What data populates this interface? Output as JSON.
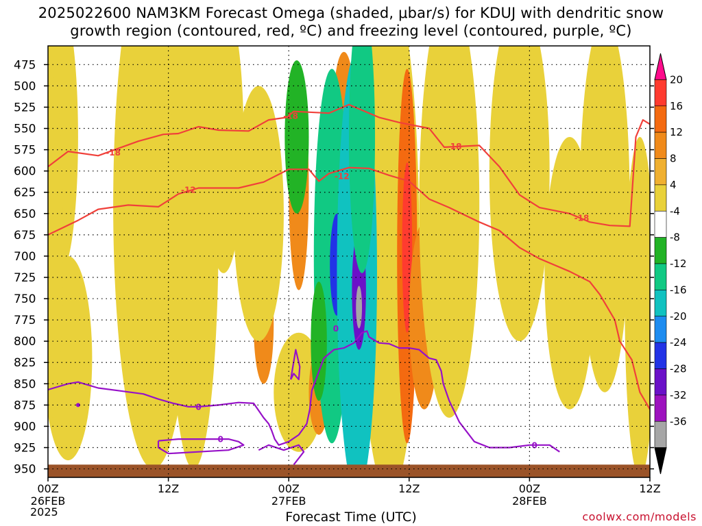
{
  "title": {
    "line1": "2025022600 NAM3KM Forecast Omega (shaded, μbar/s) for KDUJ with dendritic snow",
    "line2": "growth region (contoured, red, ºC) and freezing level (contoured, purple, ºC)"
  },
  "credit": "coolwx.com/models",
  "x_title": "Forecast Time (UTC)",
  "year_label": "2025",
  "chart_data": {
    "type": "heatmap",
    "title": "2025022600 NAM3KM Forecast Omega (shaded, μbar/s) for KDUJ",
    "xlabel": "Forecast Time (UTC)",
    "ylabel": "",
    "x_hours": [
      0,
      48
    ],
    "x_ticks": [
      {
        "hour": 0,
        "label": "00Z",
        "sub": "26FEB"
      },
      {
        "hour": 12,
        "label": "12Z",
        "sub": ""
      },
      {
        "hour": 24,
        "label": "00Z",
        "sub": "27FEB"
      },
      {
        "hour": 36,
        "label": "12Z",
        "sub": ""
      },
      {
        "hour": 48,
        "label": "00Z",
        "sub": "28FEB"
      },
      {
        "hour": 60,
        "label": "12Z",
        "sub": ""
      }
    ],
    "y_levels": [
      475,
      500,
      525,
      550,
      575,
      600,
      625,
      650,
      675,
      700,
      725,
      750,
      775,
      800,
      825,
      850,
      875,
      900,
      925,
      950
    ],
    "ylim": [
      453,
      960
    ],
    "grid": true,
    "colorbar": {
      "labels": [
        "20",
        "16",
        "12",
        "8",
        "4",
        "-4",
        "-8",
        "-12",
        "-16",
        "-20",
        "-24",
        "-28",
        "-32",
        "-36"
      ],
      "colors": [
        "#ff0b8c",
        "#ff3b2f",
        "#f46a10",
        "#f08a1a",
        "#f0b030",
        "#e9d13a",
        "#ffffff",
        "#22b326",
        "#11c983",
        "#10c2c0",
        "#1d8cf0",
        "#2233e6",
        "#6b11c8",
        "#9d12be",
        "#a6a6a6",
        "#000000"
      ]
    },
    "omega_blobs": [
      {
        "hour": 1.2,
        "level": 560,
        "dh": 1.8,
        "dl": 160,
        "value": 6
      },
      {
        "hour": 2.0,
        "level": 820,
        "dh": 2.4,
        "dl": 120,
        "value": 6
      },
      {
        "hour": 0.5,
        "level": 690,
        "dh": 1.0,
        "dl": 200,
        "value": 5
      },
      {
        "hour": 10.5,
        "level": 640,
        "dh": 4.0,
        "dl": 310,
        "value": 5
      },
      {
        "hour": 14.5,
        "level": 670,
        "dh": 2.5,
        "dl": 280,
        "value": 5
      },
      {
        "hour": 17.5,
        "level": 560,
        "dh": 2.0,
        "dl": 160,
        "value": 5
      },
      {
        "hour": 21.5,
        "level": 780,
        "dh": 1.0,
        "dl": 70,
        "value": 10
      },
      {
        "hour": 21.0,
        "level": 650,
        "dh": 2.5,
        "dl": 150,
        "value": 5
      },
      {
        "hour": 25.0,
        "level": 620,
        "dh": 1.0,
        "dl": 120,
        "value": 8
      },
      {
        "hour": 25.0,
        "level": 860,
        "dh": 2.5,
        "dl": 70,
        "value": 6
      },
      {
        "hour": 27.0,
        "level": 860,
        "dh": 1.0,
        "dl": 50,
        "value": 10
      },
      {
        "hour": 29.5,
        "level": 520,
        "dh": 1.0,
        "dl": 60,
        "value": 8
      },
      {
        "hour": 34.0,
        "level": 680,
        "dh": 3.0,
        "dl": 300,
        "value": 6
      },
      {
        "hour": 35.8,
        "level": 700,
        "dh": 1.0,
        "dl": 220,
        "value": 12
      },
      {
        "hour": 35.8,
        "level": 690,
        "dh": 0.5,
        "dl": 100,
        "value": 18
      },
      {
        "hour": 37.5,
        "level": 770,
        "dh": 1.5,
        "dl": 110,
        "value": 10
      },
      {
        "hour": 40.0,
        "level": 640,
        "dh": 3.0,
        "dl": 250,
        "value": 6
      },
      {
        "hour": 47.0,
        "level": 600,
        "dh": 3.0,
        "dl": 200,
        "value": 5
      },
      {
        "hour": 52.0,
        "level": 720,
        "dh": 2.5,
        "dl": 160,
        "value": 6
      },
      {
        "hour": 55.5,
        "level": 640,
        "dh": 2.5,
        "dl": 220,
        "value": 5
      },
      {
        "hour": 59.0,
        "level": 760,
        "dh": 1.5,
        "dl": 200,
        "value": 5
      }
    ],
    "omega_neg": [
      {
        "hour": 24.8,
        "level": 560,
        "dh": 1.2,
        "dl": 90,
        "value": -6
      },
      {
        "hour": 28.3,
        "level": 700,
        "dh": 1.8,
        "dl": 220,
        "value": -10
      },
      {
        "hour": 28.8,
        "level": 710,
        "dh": 0.7,
        "dl": 60,
        "value": -20
      },
      {
        "hour": 30.8,
        "level": 720,
        "dh": 2.0,
        "dl": 260,
        "value": -14
      },
      {
        "hour": 31.0,
        "level": 740,
        "dh": 0.7,
        "dl": 70,
        "value": -26
      },
      {
        "hour": 31.0,
        "level": 760,
        "dh": 0.3,
        "dl": 25,
        "value": -33
      },
      {
        "hour": 31.3,
        "level": 560,
        "dh": 1.3,
        "dl": 160,
        "value": -9
      },
      {
        "hour": 27.0,
        "level": 800,
        "dh": 0.8,
        "dl": 70,
        "value": -6
      }
    ],
    "dgz_contours": [
      {
        "label": "-18",
        "points": [
          [
            0,
            595
          ],
          [
            2,
            577
          ],
          [
            5,
            582
          ],
          [
            9,
            565
          ],
          [
            11.5,
            557
          ],
          [
            13,
            556
          ],
          [
            15,
            548
          ],
          [
            17,
            552
          ],
          [
            20,
            553
          ],
          [
            22,
            540
          ],
          [
            23.8,
            537
          ],
          [
            24.5,
            530
          ],
          [
            28,
            532
          ],
          [
            30,
            522
          ],
          [
            33,
            537
          ],
          [
            35,
            543
          ],
          [
            38,
            550
          ],
          [
            39.5,
            572
          ],
          [
            43,
            570
          ],
          [
            45,
            595
          ],
          [
            47,
            628
          ],
          [
            49,
            643
          ],
          [
            52,
            650
          ],
          [
            54,
            660
          ],
          [
            56,
            664
          ],
          [
            58,
            665
          ],
          [
            58.6,
            560
          ],
          [
            59.3,
            540
          ],
          [
            60,
            545
          ]
        ]
      },
      {
        "label": "-12",
        "points": [
          [
            0,
            675
          ],
          [
            3,
            658
          ],
          [
            5,
            645
          ],
          [
            8,
            640
          ],
          [
            11,
            642
          ],
          [
            13,
            627
          ],
          [
            15,
            620
          ],
          [
            19,
            620
          ],
          [
            21.5,
            613
          ],
          [
            24,
            598
          ],
          [
            26,
            598
          ],
          [
            27,
            612
          ],
          [
            28,
            603
          ],
          [
            30,
            596
          ],
          [
            32,
            597
          ],
          [
            34,
            605
          ],
          [
            36,
            612
          ],
          [
            38,
            633
          ],
          [
            40,
            643
          ],
          [
            43,
            660
          ],
          [
            45,
            670
          ],
          [
            47,
            690
          ],
          [
            49,
            703
          ],
          [
            52,
            718
          ],
          [
            54,
            730
          ],
          [
            55,
            745
          ],
          [
            56.5,
            775
          ],
          [
            57,
            800
          ],
          [
            58.2,
            822
          ],
          [
            59,
            860
          ],
          [
            60,
            880
          ]
        ]
      }
    ],
    "freezing_contours": [
      {
        "label": "0",
        "points": [
          [
            0,
            857
          ],
          [
            2,
            850
          ],
          [
            3,
            848
          ],
          [
            5,
            855
          ],
          [
            7,
            858
          ],
          [
            9.5,
            862
          ],
          [
            11,
            868
          ],
          [
            12.5,
            873
          ],
          [
            14,
            877
          ],
          [
            15,
            877
          ],
          [
            17,
            875
          ],
          [
            19,
            872
          ],
          [
            20.5,
            873
          ],
          [
            21.5,
            890
          ],
          [
            22,
            897
          ],
          [
            22.3,
            905
          ],
          [
            22.6,
            915
          ],
          [
            23,
            922
          ],
          [
            24,
            918
          ],
          [
            25,
            910
          ],
          [
            25.8,
            897
          ],
          [
            26.1,
            880
          ],
          [
            26.3,
            858
          ],
          [
            26.8,
            842
          ],
          [
            27.5,
            820
          ],
          [
            28.5,
            810
          ],
          [
            29.5,
            808
          ],
          [
            30.5,
            802
          ],
          [
            31.3,
            790
          ],
          [
            31.8,
            788
          ],
          [
            32,
            795
          ],
          [
            33,
            802
          ],
          [
            34,
            803
          ],
          [
            35,
            808
          ],
          [
            36,
            808
          ],
          [
            37,
            810
          ],
          [
            38,
            820
          ],
          [
            38.7,
            822
          ],
          [
            39.2,
            835
          ],
          [
            39.4,
            850
          ],
          [
            40,
            870
          ],
          [
            41,
            895
          ],
          [
            42.5,
            918
          ],
          [
            44,
            925
          ],
          [
            46,
            925
          ],
          [
            48,
            922
          ],
          [
            50,
            922
          ],
          [
            51,
            930
          ]
        ]
      },
      {
        "label": "0",
        "points": [
          [
            11,
            917
          ],
          [
            13,
            915
          ],
          [
            16,
            915
          ],
          [
            18,
            915
          ],
          [
            19,
            918
          ],
          [
            19.5,
            922
          ],
          [
            18,
            928
          ],
          [
            15,
            930
          ],
          [
            12,
            932
          ],
          [
            11,
            925
          ],
          [
            11,
            917
          ]
        ]
      },
      {
        "label": "",
        "points": [
          [
            24.2,
            845
          ],
          [
            24.7,
            810
          ],
          [
            25.1,
            830
          ],
          [
            25,
            845
          ],
          [
            24.5,
            838
          ],
          [
            24.2,
            845
          ]
        ]
      },
      {
        "label": "",
        "points": [
          [
            21,
            928
          ],
          [
            22,
            922
          ],
          [
            23.5,
            928
          ],
          [
            25,
            922
          ],
          [
            25.5,
            930
          ],
          [
            24.5,
            945
          ]
        ]
      }
    ],
    "ground_level": 945
  }
}
